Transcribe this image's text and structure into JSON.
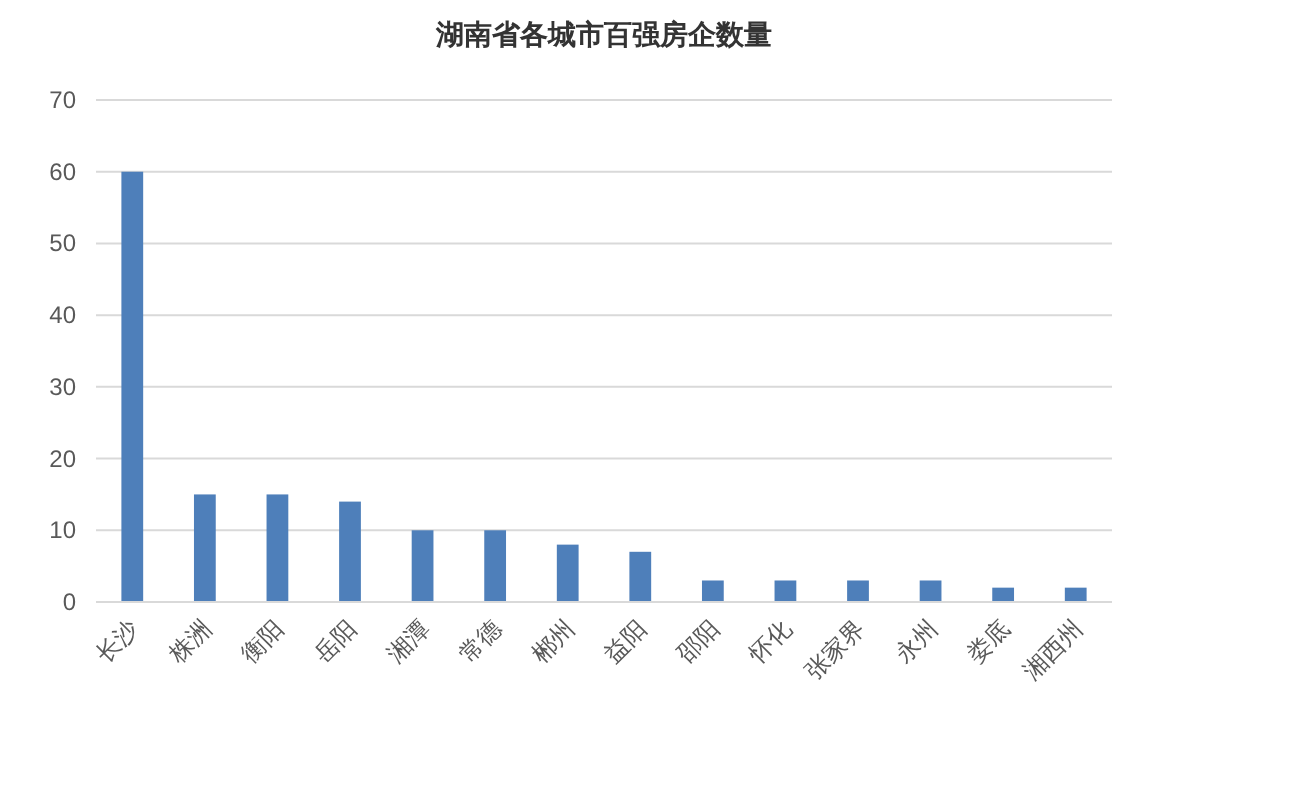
{
  "chart_data": {
    "type": "bar",
    "title": "湖南省各城市百强房企数量",
    "categories": [
      "长沙",
      "株洲",
      "衡阳",
      "岳阳",
      "湘潭",
      "常德",
      "郴州",
      "益阳",
      "邵阳",
      "怀化",
      "张家界",
      "永州",
      "娄底",
      "湘西州"
    ],
    "values": [
      60,
      15,
      15,
      14,
      10,
      10,
      8,
      7,
      3,
      3,
      3,
      3,
      2,
      2
    ],
    "color": "#4e7fba",
    "ylim": [
      0,
      70
    ],
    "yticks": [
      0,
      10,
      20,
      30,
      40,
      50,
      60,
      70
    ],
    "grid": "y"
  }
}
